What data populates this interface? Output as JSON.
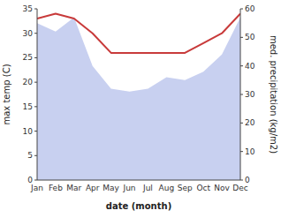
{
  "chart_data": {
    "type": "line",
    "xlabel": "date (month)",
    "ylabel": "max temp (C)",
    "y2label": "med. precipitation (kg/m2)",
    "categories": [
      "Jan",
      "Feb",
      "Mar",
      "Apr",
      "May",
      "Jun",
      "Jul",
      "Aug",
      "Sep",
      "Oct",
      "Nov",
      "Dec"
    ],
    "series": [
      {
        "type": "area",
        "axis": "y2",
        "color": "#c8d0f0",
        "values": [
          55,
          52,
          57,
          40,
          32,
          31,
          32,
          36,
          35,
          38,
          44,
          57
        ]
      },
      {
        "type": "line",
        "color": "#c83a3a",
        "values": [
          33,
          34,
          33,
          30,
          26,
          26,
          26,
          26,
          26,
          28,
          30,
          34
        ]
      }
    ],
    "ylim": [
      0,
      35
    ],
    "yticks": [
      0,
      5,
      10,
      15,
      20,
      25,
      30,
      35
    ],
    "y2lim": [
      0,
      60
    ],
    "y2ticks": [
      0,
      10,
      20,
      30,
      40,
      50,
      60
    ],
    "grid": false
  }
}
